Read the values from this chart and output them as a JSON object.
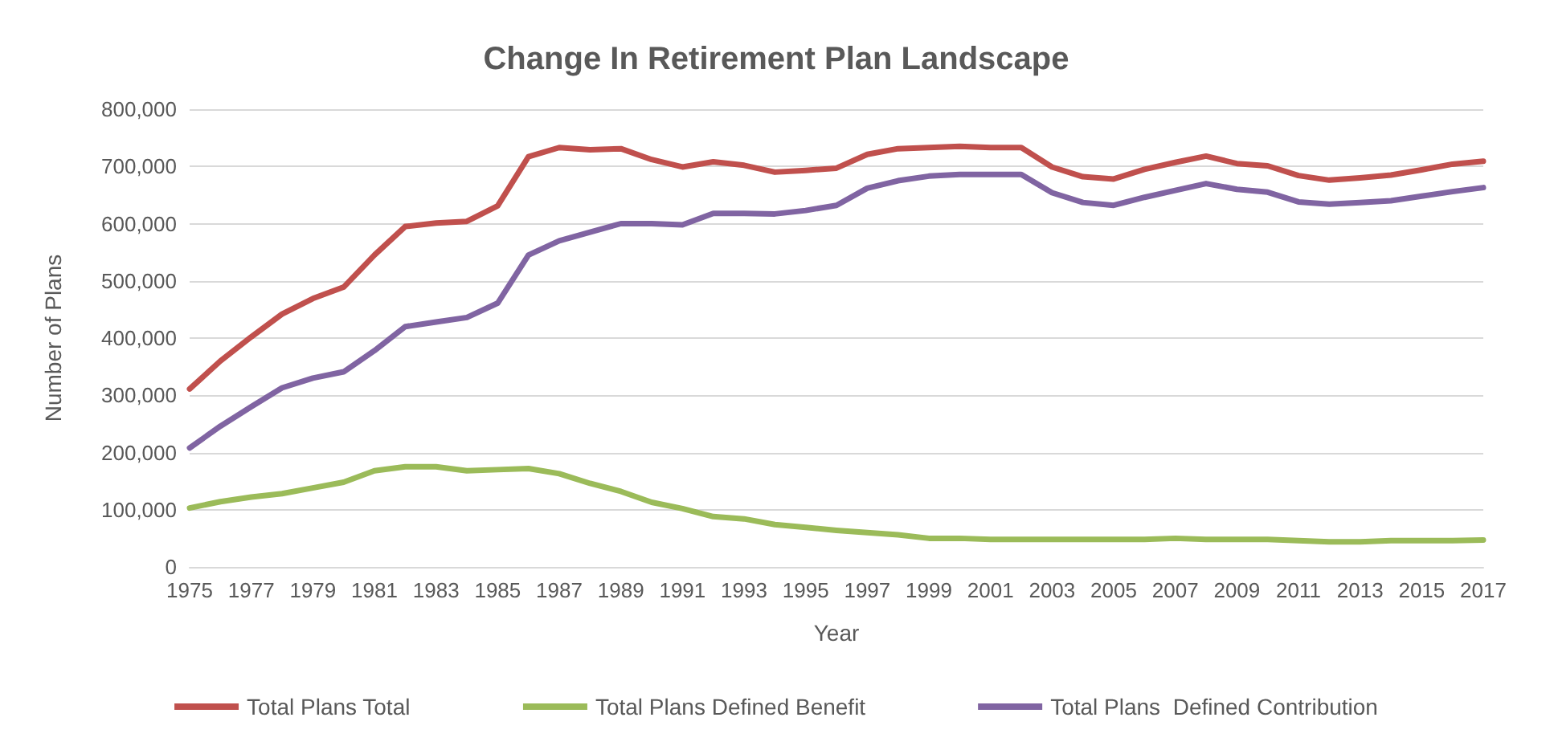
{
  "chart_data": {
    "type": "line",
    "title": "Change In Retirement Plan Landscape",
    "xlabel": "Year",
    "ylabel": "Number of Plans",
    "categories": [
      "1975",
      null,
      "1977",
      null,
      "1979",
      null,
      "1981",
      null,
      "1983",
      null,
      "1985",
      null,
      "1987",
      null,
      "1989",
      null,
      "1991",
      null,
      "1993",
      null,
      "1995",
      null,
      "1997",
      null,
      "1999",
      null,
      "2001",
      null,
      "2003",
      null,
      "2005",
      null,
      "2007",
      null,
      "2009",
      null,
      "2011",
      null,
      "2013",
      null,
      "2015",
      null,
      "2017"
    ],
    "series": [
      {
        "name": "Total Plans Total",
        "color": "#c0504d",
        "values": [
          311000,
          360000,
          402000,
          442000,
          469000,
          489000,
          545000,
          595000,
          601000,
          604000,
          631000,
          717000,
          733000,
          729000,
          731000,
          712000,
          699000,
          708000,
          702000,
          690000,
          693000,
          697000,
          721000,
          731000,
          733000,
          735000,
          733000,
          733000,
          699000,
          682000,
          678000,
          695000,
          707000,
          718000,
          705000,
          701000,
          684000,
          676000,
          680000,
          685000,
          694000,
          704000,
          709000
        ]
      },
      {
        "name": "Total Plans Defined Benefit",
        "color": "#9bbb59",
        "values": [
          103000,
          114000,
          122000,
          128000,
          138000,
          148000,
          168000,
          175000,
          175000,
          168000,
          170000,
          172000,
          163000,
          146000,
          132000,
          113000,
          102000,
          88000,
          84000,
          74000,
          69000,
          64000,
          60000,
          56000,
          50000,
          50000,
          48000,
          48000,
          48000,
          48000,
          48000,
          48000,
          50000,
          48000,
          48000,
          48000,
          46000,
          44000,
          44000,
          46000,
          46000,
          46000,
          47000
        ]
      },
      {
        "name": "Total Plans  Defined Contribution",
        "color": "#8064a2",
        "values": [
          208000,
          246000,
          280000,
          313000,
          330000,
          341000,
          378000,
          420000,
          428000,
          436000,
          461000,
          545000,
          570000,
          585000,
          600000,
          600000,
          598000,
          618000,
          618000,
          617000,
          623000,
          632000,
          662000,
          675000,
          683000,
          686000,
          686000,
          686000,
          654000,
          637000,
          632000,
          646000,
          658000,
          670000,
          660000,
          655000,
          638000,
          634000,
          637000,
          640000,
          648000,
          656000,
          663000
        ]
      }
    ],
    "ylim": [
      0,
      800000
    ],
    "yticks": [
      0,
      {
        "value": 100000,
        "label": "100,000"
      },
      {
        "value": 200000,
        "label": "200,000"
      },
      {
        "value": 300000,
        "label": "300,000"
      },
      {
        "value": 400000,
        "label": "400,000"
      },
      {
        "value": 500000,
        "label": "500,000"
      },
      {
        "value": 600000,
        "label": "600,000"
      },
      {
        "value": 700000,
        "label": "700,000"
      },
      {
        "value": 800000,
        "label": "800,000"
      }
    ],
    "grid": "y",
    "legend": "bottom",
    "marker": "none",
    "line_style": "solid"
  }
}
